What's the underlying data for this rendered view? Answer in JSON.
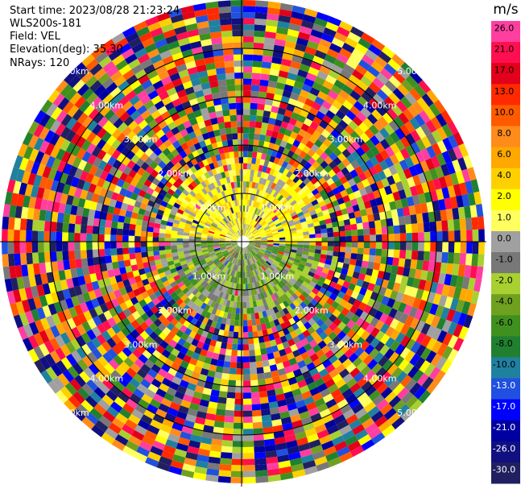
{
  "header": {
    "start_time": "Start time: 2023/08/28 21:23:24",
    "instrument": "WLS200s-181",
    "field": "Field: VEL",
    "elevation": "Elevation(deg): 35.30",
    "nrays": "NRays: 120"
  },
  "chart_data": {
    "type": "heatmap",
    "projection": "polar-ppi",
    "field": "VEL",
    "nrays": 120,
    "range_ring_labels": [
      "1.00km",
      "2.00km",
      "3.00km",
      "4.00km",
      "5.00km"
    ],
    "colorbar": {
      "unit": "m/s",
      "ticks": [
        "26.0",
        "21.0",
        "17.0",
        "13.0",
        "10.0",
        "8.0",
        "6.0",
        "4.0",
        "2.0",
        "1.0",
        "0.0",
        "-1.0",
        "-2.0",
        "-4.0",
        "-6.0",
        "-8.0",
        "-10.0",
        "-13.0",
        "-17.0",
        "-21.0",
        "-26.0",
        "-30.0"
      ],
      "colors": [
        "#ff3fa0",
        "#ff0f50",
        "#e2001a",
        "#ff2a00",
        "#ff5a00",
        "#ff8c1a",
        "#ffa800",
        "#ffd000",
        "#ffff00",
        "#ffff60",
        "#a0a0a0",
        "#787878",
        "#a8d030",
        "#70a020",
        "#409020",
        "#208030",
        "#2080a0",
        "#2050e0",
        "#0000ff",
        "#0000a0",
        "#101080",
        "#202060"
      ]
    },
    "velocity_pattern": {
      "near_north": "positive (yellow)",
      "near_south": "negative (green)",
      "far_range": "noise"
    }
  }
}
